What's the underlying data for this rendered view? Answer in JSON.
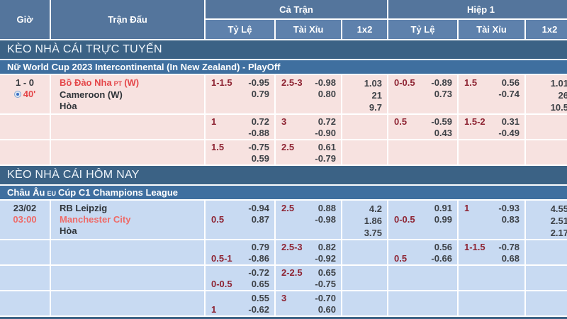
{
  "colors": {
    "header-top": "#54759c",
    "header-sub": "#5e81ac",
    "section-bar": "#3b6285",
    "league-bar": "#3f6f9f",
    "row-pink": "#f7e2e0",
    "row-blue": "#c8daf2",
    "handicap": "#8e2433",
    "value": "#3e4247",
    "red-live": "#e4474a",
    "red-today": "#ef6a67"
  },
  "header": {
    "time": "Giờ",
    "match": "Trận Đấu",
    "full_time": "Cả Trận",
    "half1": "Hiệp 1",
    "odds": "Tỷ Lệ",
    "over_under": "Tài Xỉu",
    "x12": "1x2"
  },
  "sections": [
    {
      "title": "KÈO NHÀ CÁI TRỰC TUYẾN",
      "league": {
        "name": "Nữ World Cup 2023 Intercontinental (In New Zealand) - PlayOff"
      },
      "rows": [
        {
          "score": "1 - 0",
          "minute": "40'",
          "team1": {
            "name": "Bồ Đào Nha",
            "cc": "PT",
            "tail": "(W)"
          },
          "team2": "Cameroon (W)",
          "draw": "Hòa",
          "ft_hdp": {
            "h1": "1-1.5",
            "v1": "-0.95",
            "h2": "",
            "v2": "0.79"
          },
          "ft_ou": {
            "h1": "2.5-3",
            "v1": "-0.98",
            "h2": "",
            "v2": "0.80"
          },
          "ft_1x2": {
            "a": "1.03",
            "b": "21",
            "c": "9.7"
          },
          "h1_hdp": {
            "h1": "0-0.5",
            "v1": "-0.89",
            "h2": "",
            "v2": "0.73"
          },
          "h1_ou": {
            "h1": "1.5",
            "v1": "0.56",
            "h2": "",
            "v2": "-0.74"
          },
          "h1_1x2": {
            "a": "1.01",
            "b": "26",
            "c": "10.5"
          }
        },
        {
          "ft_hdp": {
            "h1": "1",
            "v1": "0.72",
            "h2": "",
            "v2": "-0.88"
          },
          "ft_ou": {
            "h1": "3",
            "v1": "0.72",
            "h2": "",
            "v2": "-0.90"
          },
          "h1_hdp": {
            "h1": "0.5",
            "v1": "-0.59",
            "h2": "",
            "v2": "0.43"
          },
          "h1_ou": {
            "h1": "1.5-2",
            "v1": "0.31",
            "h2": "",
            "v2": "-0.49"
          }
        },
        {
          "ft_hdp": {
            "h1": "1.5",
            "v1": "-0.75",
            "h2": "",
            "v2": "0.59"
          },
          "ft_ou": {
            "h1": "2.5",
            "v1": "0.61",
            "h2": "",
            "v2": "-0.79"
          }
        }
      ]
    },
    {
      "title": "KÈO NHÀ CÁI HÔM NAY",
      "league": {
        "name": "Châu Âu",
        "cc": "EU",
        "name2": "Cúp C1 Champions League"
      },
      "rows": [
        {
          "date": "23/02",
          "time": "03:00",
          "team1": {
            "name": "RB Leipzig"
          },
          "team2": "Manchester City",
          "draw": "Hòa",
          "ft_hdp": {
            "h1": "",
            "v1": "-0.94",
            "h2": "0.5",
            "v2": "0.87"
          },
          "ft_ou": {
            "h1": "2.5",
            "v1": "0.88",
            "h2": "",
            "v2": "-0.98"
          },
          "ft_1x2": {
            "a": "4.2",
            "b": "1.86",
            "c": "3.75"
          },
          "h1_hdp": {
            "h1": "",
            "v1": "0.91",
            "h2": "0-0.5",
            "v2": "0.99"
          },
          "h1_ou": {
            "h1": "1",
            "v1": "-0.93",
            "h2": "",
            "v2": "0.83"
          },
          "h1_1x2": {
            "a": "4.55",
            "b": "2.51",
            "c": "2.17"
          }
        },
        {
          "ft_hdp": {
            "h1": "",
            "v1": "0.79",
            "h2": "0.5-1",
            "v2": "-0.86"
          },
          "ft_ou": {
            "h1": "2.5-3",
            "v1": "0.82",
            "h2": "",
            "v2": "-0.92"
          },
          "h1_hdp": {
            "h1": "",
            "v1": "0.56",
            "h2": "0.5",
            "v2": "-0.66"
          },
          "h1_ou": {
            "h1": "1-1.5",
            "v1": "-0.78",
            "h2": "",
            "v2": "0.68"
          }
        },
        {
          "ft_hdp": {
            "h1": "",
            "v1": "-0.72",
            "h2": "0-0.5",
            "v2": "0.65"
          },
          "ft_ou": {
            "h1": "2-2.5",
            "v1": "0.65",
            "h2": "",
            "v2": "-0.75"
          }
        },
        {
          "ft_hdp": {
            "h1": "",
            "v1": "0.55",
            "h2": "1",
            "v2": "-0.62"
          },
          "ft_ou": {
            "h1": "3",
            "v1": "-0.70",
            "h2": "",
            "v2": "0.60"
          }
        }
      ]
    }
  ]
}
